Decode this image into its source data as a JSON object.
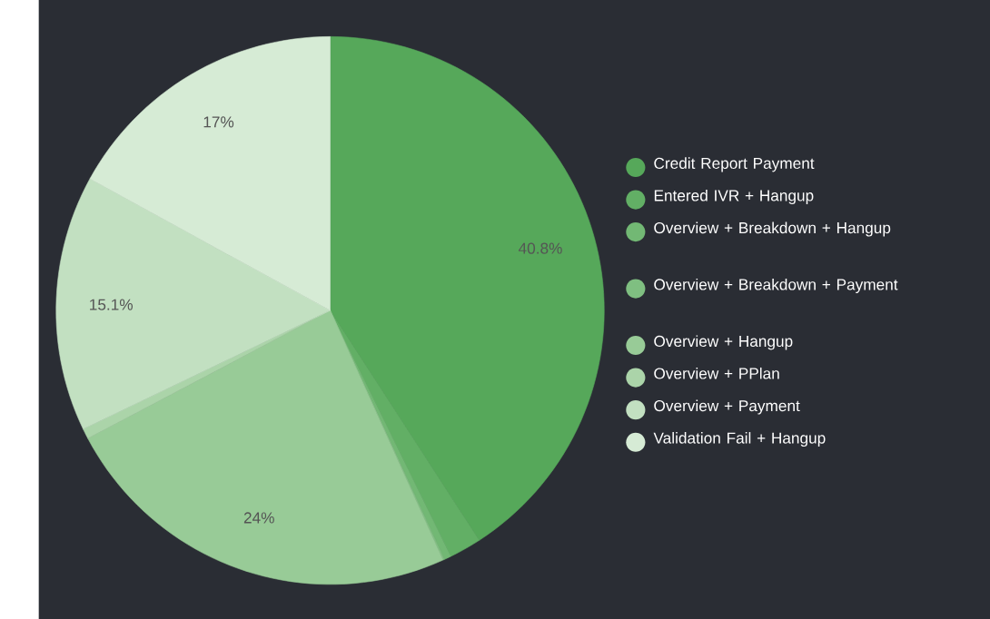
{
  "chart_data": {
    "type": "pie",
    "categories": [
      "Credit Report Payment",
      "Entered IVR + Hangup",
      "Overview + Breakdown + Hangup",
      "Overview + Breakdown + Payment",
      "Overview + Hangup",
      "Overview + PPlan",
      "Overview + Payment",
      "Validation Fail + Hangup"
    ],
    "values": [
      40.8,
      1.9,
      0.4,
      0.1,
      24,
      0.6,
      15.1,
      17
    ],
    "value_labels": [
      "40.8%",
      null,
      null,
      null,
      "24%",
      null,
      "15.1%",
      "17%"
    ],
    "colors": [
      "#56a85a",
      "#62af65",
      "#72b874",
      "#7fbf81",
      "#98cb97",
      "#abd4a9",
      "#c2e0c1",
      "#d6ebd5"
    ],
    "legend": "right"
  }
}
